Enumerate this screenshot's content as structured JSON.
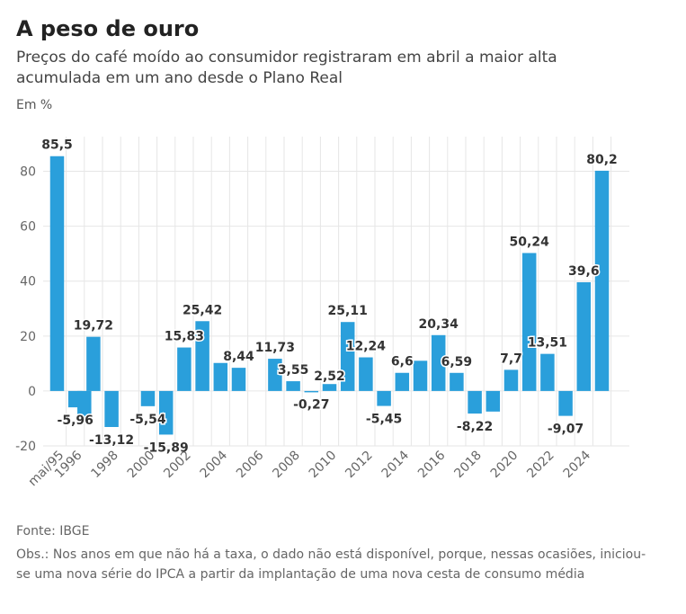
{
  "header": {
    "title": "A peso de ouro",
    "subtitle": "Preços do café moído ao consumidor registraram em abril a maior alta acumulada em um ano desde o Plano Real",
    "unit": "Em %"
  },
  "footer": {
    "source": "Fonte: IBGE",
    "note": "Obs.: Nos anos em que não há a taxa, o dado não está disponível, porque, nessas ocasiões, iniciou-se uma nova série do IPCA a partir da implantação de uma nova cesta de consumo média"
  },
  "colors": {
    "bar": "#2a9fdb",
    "grid": "#e6e6e6",
    "axis_text": "#666666",
    "label": "#333333"
  },
  "chart_data": {
    "type": "bar",
    "ylim": [
      -20,
      90
    ],
    "yticks": [
      -20,
      0,
      20,
      40,
      60,
      80
    ],
    "grid": true,
    "xtick_labels": [
      "mai/95",
      "1996",
      "1998",
      "2000",
      "2002",
      "2004",
      "2006",
      "2008",
      "2010",
      "2012",
      "2014",
      "2016",
      "2018",
      "2020",
      "2022",
      "2024"
    ],
    "points": [
      {
        "year": 1995,
        "value": 85.5,
        "label": "85,5"
      },
      {
        "year": 1996,
        "value": -5.96,
        "label": "-5,96"
      },
      {
        "year": 1996.5,
        "value": -11.6,
        "label": ""
      },
      {
        "year": 1997,
        "value": 19.72,
        "label": "19,72"
      },
      {
        "year": 1998,
        "value": -13.12,
        "label": "-13,12"
      },
      {
        "year": 2000,
        "value": -5.54,
        "label": "-5,54"
      },
      {
        "year": 2001,
        "value": -15.89,
        "label": "-15,89"
      },
      {
        "year": 2002,
        "value": 15.83,
        "label": "15,83"
      },
      {
        "year": 2003,
        "value": 25.42,
        "label": "25,42"
      },
      {
        "year": 2004,
        "value": 10.2,
        "label": ""
      },
      {
        "year": 2005,
        "value": 8.44,
        "label": "8,44"
      },
      {
        "year": 2007,
        "value": 11.73,
        "label": "11,73"
      },
      {
        "year": 2008,
        "value": 3.55,
        "label": "3,55"
      },
      {
        "year": 2009,
        "value": -0.27,
        "label": "-0,27"
      },
      {
        "year": 2010,
        "value": 2.52,
        "label": "2,52"
      },
      {
        "year": 2011,
        "value": 25.11,
        "label": "25,11"
      },
      {
        "year": 2012,
        "value": 12.24,
        "label": "12,24"
      },
      {
        "year": 2013,
        "value": -5.45,
        "label": "-5,45"
      },
      {
        "year": 2014,
        "value": 6.6,
        "label": "6,6"
      },
      {
        "year": 2015,
        "value": 11.0,
        "label": ""
      },
      {
        "year": 2016,
        "value": 20.34,
        "label": "20,34"
      },
      {
        "year": 2017,
        "value": 6.59,
        "label": "6,59"
      },
      {
        "year": 2018,
        "value": -8.22,
        "label": "-8,22"
      },
      {
        "year": 2019,
        "value": -7.5,
        "label": ""
      },
      {
        "year": 2020,
        "value": 7.7,
        "label": "7,7"
      },
      {
        "year": 2021,
        "value": 50.24,
        "label": "50,24"
      },
      {
        "year": 2022,
        "value": 13.51,
        "label": "13,51"
      },
      {
        "year": 2023,
        "value": -9.07,
        "label": "-9,07"
      },
      {
        "year": 2024,
        "value": 39.6,
        "label": "39,6"
      },
      {
        "year": 2025,
        "value": 80.2,
        "label": "80,2"
      }
    ]
  }
}
